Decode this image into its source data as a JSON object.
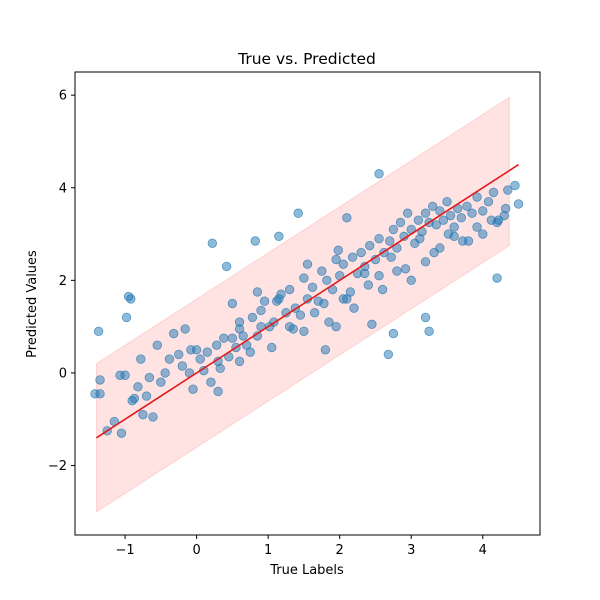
{
  "chart_data": {
    "type": "scatter",
    "title": "True vs. Predicted",
    "xlabel": "True Labels",
    "ylabel": "Predicted Values",
    "xlim": [
      -1.7,
      4.8
    ],
    "ylim": [
      -3.5,
      6.5
    ],
    "xticks": [
      -1,
      0,
      1,
      2,
      3,
      4
    ],
    "yticks": [
      -2,
      0,
      2,
      4,
      6
    ],
    "xtick_labels": [
      "−1",
      "0",
      "1",
      "2",
      "3",
      "4"
    ],
    "ytick_labels": [
      "−2",
      "0",
      "2",
      "4",
      "6"
    ],
    "grid": false,
    "legend": "none",
    "colors": {
      "points": "#1f77b4",
      "fit_line": "#e31a1c",
      "band": "#ff9999"
    },
    "fit_line": {
      "x": [
        -1.4,
        4.5
      ],
      "y": [
        -1.4,
        4.5
      ]
    },
    "prediction_band": {
      "x": [
        -1.4,
        4.37
      ],
      "upper": [
        0.2,
        5.95
      ],
      "lower": [
        -3.0,
        2.75
      ]
    },
    "series": [
      {
        "x": [
          -1.42,
          -1.37,
          -1.35,
          -1.25,
          -1.15,
          -1.07,
          -1.05,
          -1.0,
          -0.98,
          -0.92,
          -0.9,
          -0.87,
          -0.82,
          -0.78,
          -0.75,
          -0.7,
          -0.66,
          -0.61,
          -0.55,
          -0.5,
          -0.44,
          -0.38,
          -0.32,
          -0.25,
          -0.2,
          -0.16,
          -0.1,
          -0.08,
          -0.05,
          0.0,
          0.05,
          0.1,
          0.15,
          0.2,
          0.28,
          0.33,
          0.38,
          0.45,
          0.5,
          0.55,
          0.6,
          0.65,
          0.7,
          0.78,
          0.85,
          0.9,
          0.95,
          1.02,
          1.08,
          1.12,
          1.18,
          1.25,
          1.3,
          1.38,
          1.45,
          1.5,
          1.55,
          1.62,
          1.7,
          1.75,
          1.82,
          1.9,
          1.95,
          2.0,
          2.05,
          2.1,
          2.18,
          2.25,
          2.3,
          2.35,
          2.42,
          2.5,
          2.55,
          2.62,
          2.7,
          2.75,
          2.8,
          2.85,
          2.9,
          2.95,
          3.0,
          3.05,
          3.1,
          3.15,
          3.2,
          3.25,
          3.3,
          3.35,
          3.4,
          3.45,
          3.5,
          3.55,
          3.6,
          3.65,
          3.7,
          3.78,
          3.85,
          3.92,
          4.0,
          4.08,
          4.15,
          4.22,
          4.3,
          4.35,
          4.45,
          4.5,
          0.3,
          0.5,
          0.75,
          0.9,
          1.05,
          1.3,
          1.5,
          1.65,
          1.85,
          2.05,
          2.2,
          2.4,
          2.6,
          2.8,
          3.0,
          3.2,
          3.4,
          3.6,
          3.8,
          4.0,
          4.2,
          0.6,
          0.85,
          1.15,
          1.35,
          1.55,
          1.78,
          1.98,
          2.15,
          2.35,
          2.55,
          2.72,
          2.92,
          3.12,
          3.32,
          3.52,
          3.72,
          3.92,
          4.12,
          4.32,
          -0.95,
          0.22,
          0.42,
          0.82,
          1.15,
          1.42,
          2.1,
          2.55,
          4.2,
          2.68,
          3.25,
          -1.35,
          1.8,
          2.75,
          3.2,
          0.3,
          0.6,
          1.95,
          2.45
        ],
        "y": [
          -0.45,
          0.9,
          -0.15,
          -1.25,
          -1.05,
          -0.05,
          -1.3,
          -0.05,
          1.2,
          1.6,
          -0.6,
          -0.55,
          -0.3,
          0.3,
          -0.9,
          -0.5,
          -0.1,
          -0.95,
          0.6,
          -0.2,
          0.0,
          0.3,
          0.85,
          0.4,
          0.15,
          0.95,
          0.0,
          0.5,
          -0.35,
          0.5,
          0.3,
          0.05,
          0.45,
          -0.2,
          0.6,
          0.1,
          0.75,
          0.35,
          1.5,
          0.55,
          1.1,
          0.8,
          0.6,
          1.2,
          0.8,
          1.35,
          1.55,
          1.0,
          1.1,
          1.55,
          1.7,
          1.3,
          1.8,
          1.4,
          1.25,
          2.05,
          1.6,
          1.85,
          1.55,
          2.2,
          2.0,
          1.8,
          2.45,
          2.1,
          2.35,
          1.6,
          2.5,
          2.15,
          2.6,
          2.3,
          2.75,
          2.45,
          2.9,
          2.6,
          2.85,
          3.1,
          2.7,
          3.25,
          2.95,
          3.45,
          3.1,
          2.8,
          3.3,
          3.05,
          3.45,
          3.25,
          3.6,
          3.2,
          3.5,
          3.3,
          3.7,
          3.4,
          3.15,
          3.55,
          3.35,
          3.6,
          3.45,
          3.8,
          3.5,
          3.7,
          3.9,
          3.3,
          3.4,
          3.95,
          4.05,
          3.65,
          0.25,
          0.75,
          0.45,
          1.0,
          0.55,
          1.0,
          0.9,
          1.3,
          1.1,
          1.6,
          1.4,
          1.9,
          1.8,
          2.2,
          2.0,
          2.4,
          2.7,
          2.95,
          2.85,
          3.0,
          3.25,
          0.95,
          1.75,
          1.6,
          0.95,
          2.35,
          1.5,
          2.65,
          1.75,
          2.15,
          2.1,
          2.5,
          2.25,
          2.9,
          2.6,
          3.0,
          2.85,
          3.15,
          3.3,
          3.55,
          1.65,
          2.8,
          2.3,
          2.85,
          2.95,
          3.45,
          3.35,
          4.3,
          2.05,
          0.4,
          0.9,
          -0.45,
          0.5,
          0.85,
          1.2,
          -0.4,
          0.25,
          1.0,
          1.05
        ]
      }
    ]
  }
}
